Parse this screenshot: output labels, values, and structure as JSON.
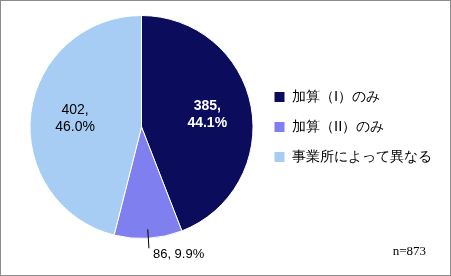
{
  "chart_data": {
    "type": "pie",
    "categories": [
      "加算（I）のみ",
      "加算（II）のみ",
      "事業所によって異なる"
    ],
    "values": [
      385,
      86,
      402
    ],
    "value_labels": [
      "385, 44.1%",
      "86, 9.9%",
      "402, 46.0%"
    ],
    "colors": [
      "#0c0c5c",
      "#7f7ff0",
      "#a7cdf5"
    ],
    "data_labels": true,
    "legend": "right",
    "annotation": "n=873"
  }
}
